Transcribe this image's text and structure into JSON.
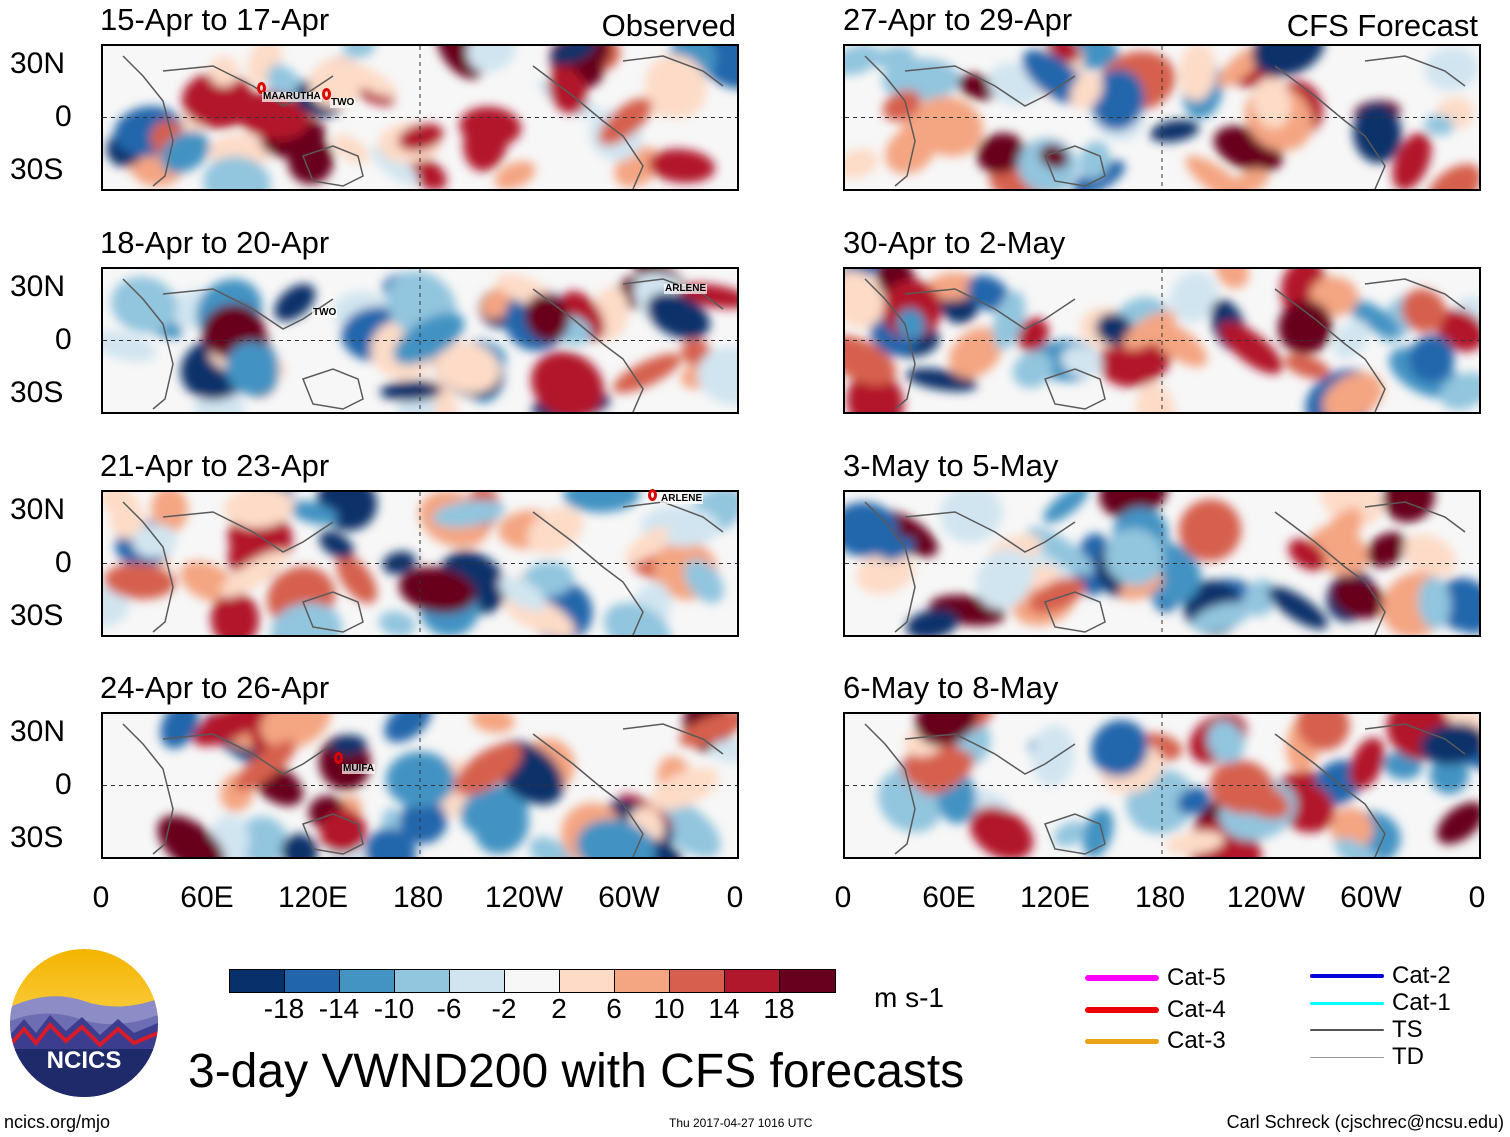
{
  "colors": {
    "palette": [
      "#08306b",
      "#2166ac",
      "#4393c3",
      "#92c5de",
      "#d1e5f0",
      "#f7f7f7",
      "#fddbc7",
      "#f4a582",
      "#d6604d",
      "#b2182b",
      "#67001f"
    ],
    "storm_marker": "#dd0000",
    "frame": "#000000"
  },
  "columns": {
    "left_label": "Observed",
    "right_label": "CFS Forecast"
  },
  "panels": {
    "observed": [
      {
        "title": "15-Apr to 17-Apr",
        "storms": [
          "MAARUTHA",
          "TWO"
        ]
      },
      {
        "title": "18-Apr to 20-Apr",
        "storms": [
          "TWO",
          "ARLENE"
        ]
      },
      {
        "title": "21-Apr to 23-Apr",
        "storms": [
          "ARLENE"
        ]
      },
      {
        "title": "24-Apr to 26-Apr",
        "storms": [
          "MUIFA"
        ]
      }
    ],
    "forecast": [
      {
        "title": "27-Apr to 29-Apr"
      },
      {
        "title": "30-Apr to 2-May"
      },
      {
        "title": "3-May to 5-May"
      },
      {
        "title": "6-May to 8-May"
      }
    ]
  },
  "axes": {
    "lat_labels": [
      "30N",
      "0",
      "30S"
    ],
    "lon_labels": [
      "0",
      "60E",
      "120E",
      "180",
      "120W",
      "60W",
      "0"
    ]
  },
  "colorbar": {
    "labels": [
      "-18",
      "-14",
      "-10",
      "-6",
      "-2",
      "2",
      "6",
      "10",
      "14",
      "18"
    ],
    "units": "m s-1"
  },
  "legend": [
    {
      "label": "Cat-5",
      "color": "#ff00ff"
    },
    {
      "label": "Cat-4",
      "color": "#ee0000"
    },
    {
      "label": "Cat-3",
      "color": "#e8a317"
    },
    {
      "label": "Cat-2",
      "color": "#0000dd"
    },
    {
      "label": "Cat-1",
      "color": "#00ffff"
    },
    {
      "label": "TS",
      "color": "#555555"
    },
    {
      "label": "TD",
      "color": "#999999"
    }
  ],
  "logo": {
    "text": "NCICS"
  },
  "title": "3-day VWND200 with CFS forecasts",
  "footer": {
    "left": "ncics.org/mjo",
    "center": "Thu 2017-04-27 1016 UTC",
    "right": "Carl Schreck (cjschrec@ncsu.edu)"
  }
}
